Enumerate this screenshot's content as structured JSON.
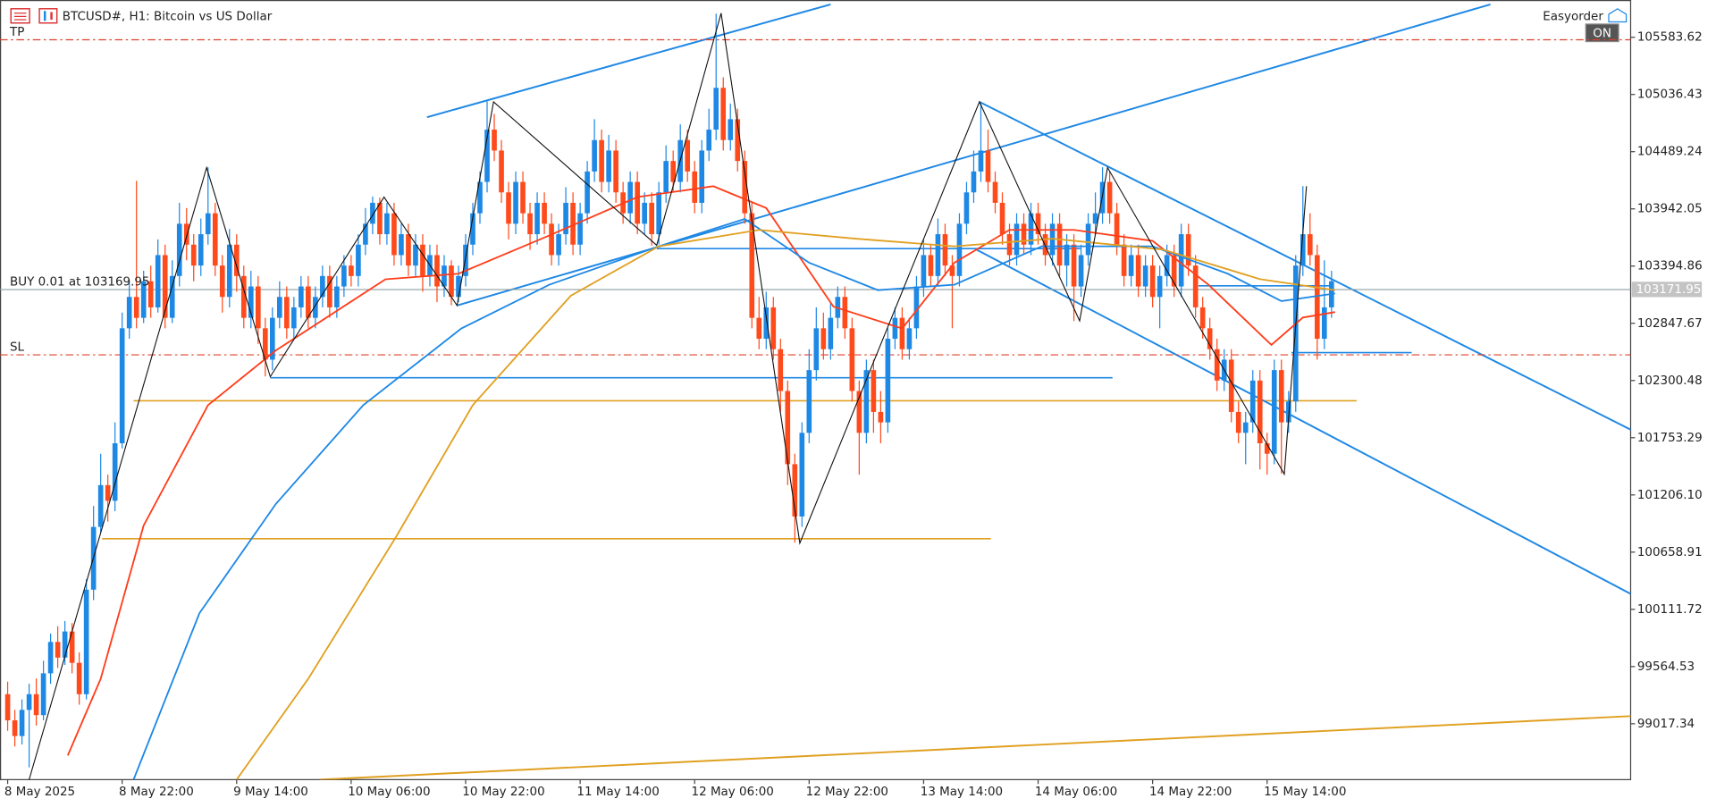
{
  "chart_data": {
    "type": "candlestick",
    "title": "BTCUSD#, H1:  Bitcoin vs US Dollar",
    "expert": "Easyorder",
    "button": "ON",
    "up_color": "#1e88e5",
    "down_color": "#ff4a1c",
    "first_open": 99300,
    "close": [
      99050,
      98900,
      99150,
      99300,
      99100,
      99500,
      99800,
      99650,
      99900,
      99600,
      99300,
      100300,
      100900,
      101300,
      101150,
      101700,
      102800,
      103100,
      102900,
      103250,
      103000,
      103500,
      102900,
      103300,
      103800,
      103600,
      103400,
      103700,
      103900,
      103400,
      103100,
      103600,
      103300,
      102900,
      103200,
      102800,
      102500,
      102900,
      103100,
      102800,
      103000,
      103200,
      102900,
      103100,
      103300,
      103000,
      103200,
      103400,
      103300,
      103600,
      103800,
      104000,
      103700,
      103900,
      103500,
      103700,
      103400,
      103600,
      103300,
      103500,
      103200,
      103400,
      103100,
      103300,
      103600,
      103900,
      104200,
      104700,
      104500,
      104100,
      103800,
      104200,
      103900,
      103700,
      104000,
      103800,
      103500,
      103700,
      104000,
      103600,
      103900,
      104300,
      104600,
      104200,
      104500,
      104100,
      103900,
      104200,
      103800,
      104000,
      103700,
      104100,
      104400,
      104200,
      104600,
      104300,
      104000,
      104500,
      104700,
      105100,
      104600,
      104800,
      104400,
      103900,
      102900,
      102700,
      103000,
      102600,
      102200,
      101500,
      101000,
      101800,
      102400,
      102800,
      102600,
      102900,
      103100,
      102800,
      102200,
      101800,
      102400,
      102000,
      101900,
      102700,
      102900,
      102600,
      102800,
      103200,
      103500,
      103300,
      103700,
      103400,
      103300,
      103800,
      104100,
      104300,
      104500,
      104200,
      104000,
      103700,
      103500,
      103800,
      103600,
      103900,
      103700,
      103500,
      103800,
      103400,
      103600,
      103200,
      103500,
      103800,
      103900,
      104200,
      103900,
      103600,
      103300,
      103500,
      103200,
      103400,
      103100,
      103300,
      103500,
      103200,
      103700,
      103400,
      103000,
      102800,
      102600,
      102300,
      102500,
      102000,
      101800,
      101900,
      102300,
      101700,
      101600,
      102400,
      101900,
      102100,
      103400,
      103700,
      103500,
      102700,
      103000,
      103250
    ],
    "high": [
      99420,
      99150,
      99250,
      99400,
      99450,
      99620,
      99880,
      99950,
      100000,
      99980,
      99700,
      100400,
      101100,
      101600,
      101400,
      101900,
      102950,
      103250,
      104210,
      103350,
      103400,
      103650,
      103600,
      103450,
      104000,
      103950,
      103700,
      103850,
      104340,
      104000,
      103500,
      103750,
      103700,
      103400,
      103350,
      103300,
      102900,
      103000,
      103250,
      103200,
      103100,
      103300,
      103300,
      103200,
      103400,
      103400,
      103300,
      103500,
      103500,
      103700,
      103950,
      104060,
      104050,
      104000,
      104000,
      103800,
      103800,
      103700,
      103700,
      103600,
      103600,
      103500,
      103450,
      103400,
      103700,
      104000,
      104300,
      104970,
      104850,
      104600,
      104200,
      104300,
      104300,
      104000,
      104100,
      104100,
      103900,
      103800,
      104150,
      104100,
      104000,
      104400,
      104800,
      104700,
      104650,
      104600,
      104200,
      104300,
      104300,
      104100,
      104100,
      104200,
      104550,
      104500,
      104750,
      104700,
      104400,
      104600,
      104900,
      105810,
      105200,
      104950,
      104900,
      104500,
      104000,
      103100,
      103150,
      103100,
      102700,
      102300,
      101600,
      101900,
      102600,
      103000,
      102950,
      103050,
      103200,
      103200,
      102900,
      102300,
      102500,
      102500,
      102200,
      102800,
      103000,
      103000,
      102900,
      103300,
      103650,
      103600,
      103850,
      103800,
      103500,
      103900,
      104200,
      104500,
      104960,
      104700,
      104300,
      104100,
      103800,
      103900,
      103900,
      104000,
      104000,
      103800,
      103900,
      103900,
      103700,
      103700,
      103600,
      103900,
      104100,
      104340,
      104300,
      104000,
      103700,
      103600,
      103600,
      103500,
      103500,
      103400,
      103600,
      103600,
      103800,
      103800,
      103500,
      103100,
      102900,
      102700,
      102600,
      102600,
      102100,
      102000,
      102400,
      102400,
      101800,
      102500,
      102500,
      102200,
      103500,
      104160,
      103900,
      103600,
      103450,
      103350
    ],
    "low": [
      98950,
      98800,
      98820,
      98600,
      99000,
      99050,
      99400,
      99550,
      99580,
      99500,
      99200,
      99250,
      100200,
      100850,
      100950,
      101050,
      101650,
      102700,
      102800,
      102850,
      102900,
      102950,
      102800,
      102850,
      103200,
      103450,
      103250,
      103300,
      103600,
      103300,
      102950,
      103000,
      103150,
      102800,
      102800,
      102650,
      102340,
      102400,
      102800,
      102700,
      102700,
      102900,
      102800,
      102800,
      103000,
      102900,
      102900,
      103100,
      103200,
      103200,
      103500,
      103700,
      103600,
      103600,
      103400,
      103400,
      103300,
      103300,
      103150,
      103200,
      103050,
      103100,
      103020,
      103050,
      103200,
      103500,
      103800,
      104100,
      104400,
      104000,
      103650,
      103700,
      103800,
      103550,
      103600,
      103700,
      103400,
      103400,
      103600,
      103500,
      103500,
      103800,
      104200,
      104100,
      104100,
      104000,
      103800,
      103800,
      103700,
      103700,
      103590,
      103600,
      104000,
      104100,
      104100,
      104200,
      103900,
      103900,
      104400,
      104600,
      104500,
      104500,
      104300,
      103800,
      102800,
      102600,
      102600,
      102500,
      102000,
      101300,
      100750,
      100900,
      101700,
      102300,
      102500,
      102500,
      102800,
      102700,
      102100,
      101400,
      101700,
      101800,
      101700,
      101800,
      102600,
      102500,
      102500,
      102700,
      103100,
      103200,
      103200,
      103300,
      102800,
      103200,
      103700,
      104000,
      104200,
      104100,
      103900,
      103600,
      103400,
      103400,
      103500,
      103500,
      103600,
      103400,
      103400,
      103300,
      103200,
      102870,
      103100,
      103400,
      103700,
      103800,
      103800,
      103500,
      103200,
      103200,
      103100,
      103100,
      103000,
      102800,
      103200,
      103100,
      103100,
      103300,
      102900,
      102700,
      102500,
      102200,
      102200,
      101900,
      101700,
      101500,
      101800,
      101450,
      101400,
      101500,
      101410,
      101800,
      102000,
      103300,
      103400,
      102500,
      102600,
      102900
    ],
    "xlim": [
      -1.07,
      226.8
    ],
    "ylim": [
      98483,
      105940
    ],
    "yticks": [
      105583.62,
      105036.43,
      104489.24,
      103942.05,
      103394.86,
      102847.67,
      102300.48,
      101753.29,
      {
        "value": 101206.1,
        "label": "101206.10"
      },
      100658.91,
      100111.72,
      99564.53,
      99017.34
    ],
    "xticks": [
      {
        "value": 0,
        "label": "8 May 2025"
      },
      {
        "value": 16,
        "label": "8 May 22:00"
      },
      {
        "value": 32,
        "label": "9 May 14:00"
      },
      {
        "value": 48,
        "label": "10 May 06:00"
      },
      {
        "value": 64,
        "label": "10 May 22:00"
      },
      {
        "value": 80,
        "label": "11 May 14:00"
      },
      {
        "value": 96,
        "label": "12 May 06:00"
      },
      {
        "value": 112,
        "label": "12 May 22:00"
      },
      {
        "value": 128,
        "label": "13 May 14:00"
      },
      {
        "value": 144,
        "label": "14 May 06:00"
      },
      {
        "value": 160,
        "label": "14 May 22:00"
      },
      {
        "value": 176,
        "label": "15 May 14:00"
      }
    ],
    "moving_averages": [
      {
        "color": "#ff3d1a",
        "x": [
          8.4,
          13,
          19,
          28,
          37.5,
          52.8,
          63,
          75.7,
          88,
          98.6,
          106,
          115.4,
          125,
          132.3,
          140,
          149,
          160,
          167.8,
          176.6,
          181,
          185.5
        ],
        "values": [
          98714,
          99447,
          100913,
          102065,
          102589,
          103269,
          103322,
          103688,
          104055,
          104159,
          103950,
          103007,
          102798,
          103427,
          103741,
          103741,
          103636,
          103217,
          102641,
          102903,
          102955
        ]
      },
      {
        "color": "#1e88e5",
        "x": [
          17.6,
          26.8,
          37.5,
          49.7,
          63.4,
          75.7,
          91,
          103,
          112,
          121.6,
          132.3,
          144.5,
          160,
          170.5,
          178,
          185.5
        ],
        "values": [
          98483,
          100075,
          101122,
          102065,
          102798,
          103217,
          103584,
          103846,
          103427,
          103165,
          103217,
          103584,
          103584,
          103322,
          103060,
          103133
        ]
      },
      {
        "color": "#e0a020",
        "x": [
          32,
          42,
          54.3,
          65,
          78.7,
          91,
          105,
          118.5,
          132.3,
          146,
          161.5,
          175,
          185.5
        ],
        "values": [
          98483,
          99447,
          100808,
          102065,
          103112,
          103584,
          103741,
          103657,
          103584,
          103657,
          103552,
          103270,
          103165
        ]
      }
    ],
    "zigzag": {
      "color": "#111111",
      "x": [
        3,
        27.8,
        36.7,
        52.6,
        62.8,
        67.9,
        90.7,
        99.7,
        110.7,
        135.8,
        149.8,
        153.7,
        178.4,
        181.5
      ],
      "values": [
        98483,
        104337,
        102337,
        104055,
        103018,
        104966,
        103594,
        105814,
        100745,
        104966,
        102871,
        104337,
        101405,
        104159
      ]
    },
    "trendlines": [
      {
        "color": "#1e88e5",
        "x": [
          58.6,
          115
        ],
        "values": [
          104819,
          105898
        ]
      },
      {
        "color": "#1e88e5",
        "x": [
          62.8,
          207.2
        ],
        "values": [
          103018,
          105898
        ]
      },
      {
        "color": "#1e88e5",
        "x": [
          135.8,
          227
        ],
        "values": [
          104966,
          101824
        ]
      },
      {
        "color": "#1e88e5",
        "x": [
          135.4,
          227
        ],
        "values": [
          103552,
          100253
        ]
      },
      {
        "color": "#e0a020",
        "x": [
          43.6,
          227
        ],
        "values": [
          98483,
          99091
        ]
      }
    ],
    "levels": [
      {
        "color": "#1e88e5",
        "x": [
          90.7,
          149.9
        ],
        "value": 103562
      },
      {
        "color": "#1e88e5",
        "x": [
          36.7,
          154.4
        ],
        "value": 102327
      },
      {
        "color": "#e0a020",
        "x": [
          17.6,
          188.5
        ],
        "value": 102107
      },
      {
        "color": "#e0a020",
        "x": [
          13.2,
          137.4
        ],
        "value": 100787
      },
      {
        "color": "#1e88e5",
        "x": [
          179.4,
          196.2
        ],
        "value": 102567
      },
      {
        "color": "#1e88e5",
        "x": [
          166.4,
          185.2
        ],
        "value": 103206
      }
    ],
    "orders": [
      {
        "label": "TP",
        "price": 105560,
        "color": "#e0402a"
      },
      {
        "label": "SL",
        "price": 102546,
        "color": "#e0402a"
      },
      {
        "label": "BUY 0.01 at 103169.95",
        "price": 103169.95,
        "color": "#444444"
      }
    ],
    "bid": 103171.95
  }
}
